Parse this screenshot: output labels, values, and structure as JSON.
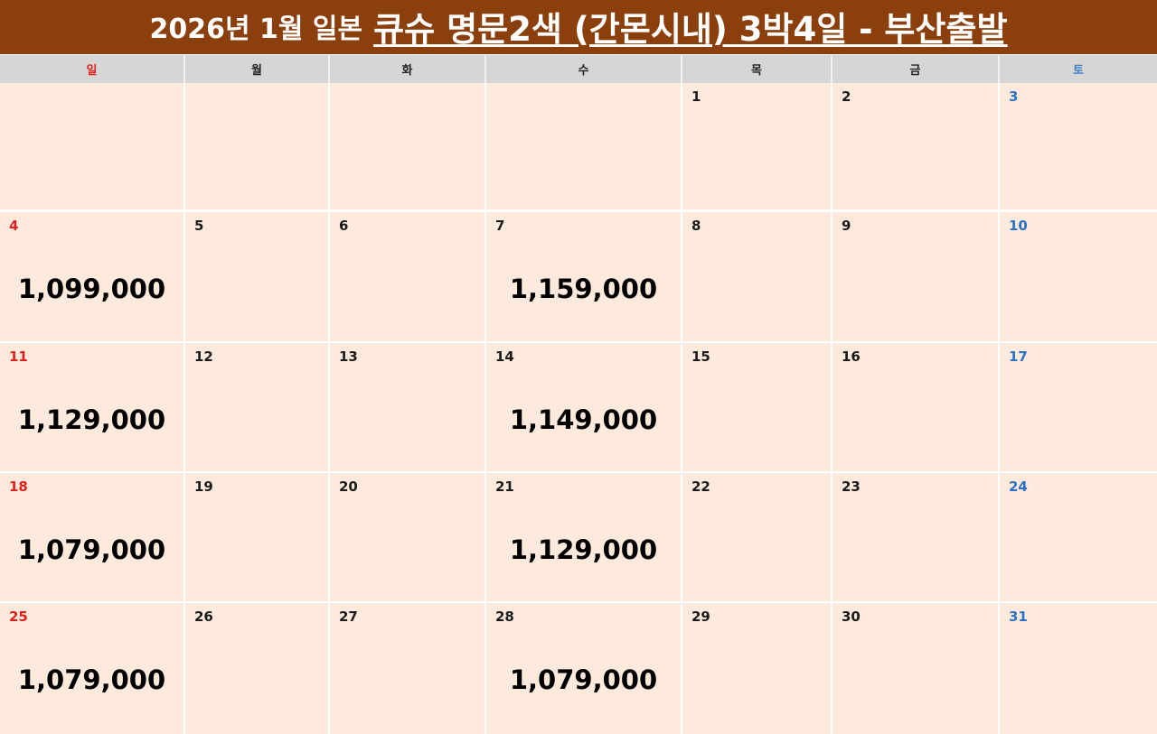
{
  "title": {
    "part1": "2026년 1월 일본",
    "part2": "큐슈 명문2색 (간몬시내) 3박4일 - 부산출발"
  },
  "weekdays": [
    "일",
    "월",
    "화",
    "수",
    "목",
    "금",
    "토"
  ],
  "weeks": [
    [
      {
        "day": "",
        "price": ""
      },
      {
        "day": "",
        "price": ""
      },
      {
        "day": "",
        "price": ""
      },
      {
        "day": "",
        "price": ""
      },
      {
        "day": "1",
        "price": ""
      },
      {
        "day": "2",
        "price": ""
      },
      {
        "day": "3",
        "price": ""
      }
    ],
    [
      {
        "day": "4",
        "price": "1,099,000"
      },
      {
        "day": "5",
        "price": ""
      },
      {
        "day": "6",
        "price": ""
      },
      {
        "day": "7",
        "price": "1,159,000"
      },
      {
        "day": "8",
        "price": ""
      },
      {
        "day": "9",
        "price": ""
      },
      {
        "day": "10",
        "price": ""
      }
    ],
    [
      {
        "day": "11",
        "price": "1,129,000"
      },
      {
        "day": "12",
        "price": ""
      },
      {
        "day": "13",
        "price": ""
      },
      {
        "day": "14",
        "price": "1,149,000"
      },
      {
        "day": "15",
        "price": ""
      },
      {
        "day": "16",
        "price": ""
      },
      {
        "day": "17",
        "price": ""
      }
    ],
    [
      {
        "day": "18",
        "price": "1,079,000"
      },
      {
        "day": "19",
        "price": ""
      },
      {
        "day": "20",
        "price": ""
      },
      {
        "day": "21",
        "price": "1,129,000"
      },
      {
        "day": "22",
        "price": ""
      },
      {
        "day": "23",
        "price": ""
      },
      {
        "day": "24",
        "price": ""
      }
    ],
    [
      {
        "day": "25",
        "price": "1,079,000"
      },
      {
        "day": "26",
        "price": ""
      },
      {
        "day": "27",
        "price": ""
      },
      {
        "day": "28",
        "price": "1,079,000"
      },
      {
        "day": "29",
        "price": ""
      },
      {
        "day": "30",
        "price": ""
      },
      {
        "day": "31",
        "price": ""
      }
    ]
  ],
  "colors": {
    "title_bg": "#8a3f0c",
    "cell_bg": "#fdeadc",
    "header_bg": "#d6d6d6",
    "sunday": "#e0201e",
    "saturday": "#2a72c6"
  }
}
